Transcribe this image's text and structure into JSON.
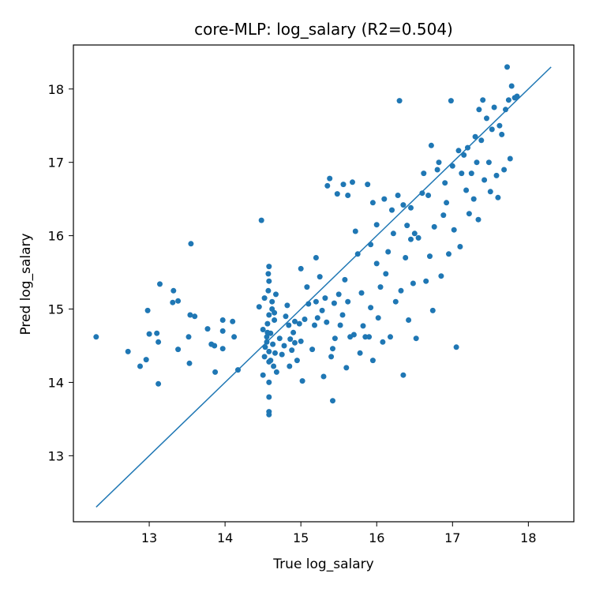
{
  "chart_data": {
    "type": "scatter",
    "title": "core-MLP: log_salary (R2=0.504)",
    "xlabel": "True log_salary",
    "ylabel": "Pred log_salary",
    "xlim": [
      12.0,
      18.6
    ],
    "ylim": [
      12.1,
      18.6
    ],
    "xticks": [
      13,
      14,
      15,
      16,
      17,
      18
    ],
    "yticks": [
      13,
      14,
      15,
      16,
      17,
      18
    ],
    "grid": false,
    "marker_color": "#1f77b4",
    "reference_line": {
      "x": [
        12.3,
        18.3
      ],
      "y": [
        12.3,
        18.3
      ],
      "color": "#1f77b4"
    },
    "points": [
      [
        12.3,
        14.62
      ],
      [
        12.72,
        14.42
      ],
      [
        12.88,
        14.22
      ],
      [
        12.96,
        14.31
      ],
      [
        12.98,
        14.98
      ],
      [
        13.0,
        14.66
      ],
      [
        13.1,
        14.67
      ],
      [
        13.12,
        14.55
      ],
      [
        13.12,
        13.98
      ],
      [
        13.14,
        15.34
      ],
      [
        13.32,
        15.25
      ],
      [
        13.31,
        15.09
      ],
      [
        13.38,
        15.11
      ],
      [
        13.38,
        14.45
      ],
      [
        13.52,
        14.62
      ],
      [
        13.53,
        14.26
      ],
      [
        13.54,
        14.92
      ],
      [
        13.55,
        15.89
      ],
      [
        13.6,
        14.9
      ],
      [
        13.77,
        14.73
      ],
      [
        13.82,
        14.52
      ],
      [
        13.86,
        14.5
      ],
      [
        13.87,
        14.14
      ],
      [
        13.97,
        14.85
      ],
      [
        13.97,
        14.7
      ],
      [
        13.97,
        14.46
      ],
      [
        14.1,
        14.83
      ],
      [
        14.12,
        14.62
      ],
      [
        14.17,
        14.17
      ],
      [
        14.45,
        15.03
      ],
      [
        14.48,
        16.21
      ],
      [
        14.5,
        14.72
      ],
      [
        14.52,
        15.15
      ],
      [
        14.5,
        14.1
      ],
      [
        14.52,
        14.35
      ],
      [
        14.53,
        14.48
      ],
      [
        14.55,
        14.55
      ],
      [
        14.55,
        14.62
      ],
      [
        14.56,
        14.68
      ],
      [
        14.56,
        14.8
      ],
      [
        14.57,
        15.25
      ],
      [
        14.57,
        15.48
      ],
      [
        14.58,
        15.58
      ],
      [
        14.58,
        15.38
      ],
      [
        14.58,
        14.92
      ],
      [
        14.58,
        14.42
      ],
      [
        14.58,
        14.28
      ],
      [
        14.58,
        14.0
      ],
      [
        14.58,
        13.8
      ],
      [
        14.58,
        13.6
      ],
      [
        14.58,
        13.56
      ],
      [
        14.6,
        14.67
      ],
      [
        14.6,
        14.3
      ],
      [
        14.62,
        15.0
      ],
      [
        14.62,
        15.1
      ],
      [
        14.63,
        14.52
      ],
      [
        14.64,
        14.22
      ],
      [
        14.65,
        14.85
      ],
      [
        14.65,
        14.95
      ],
      [
        14.66,
        14.4
      ],
      [
        14.67,
        15.2
      ],
      [
        14.68,
        14.14
      ],
      [
        14.72,
        14.6
      ],
      [
        14.75,
        14.38
      ],
      [
        14.78,
        14.5
      ],
      [
        14.8,
        14.9
      ],
      [
        14.82,
        15.05
      ],
      [
        14.84,
        14.78
      ],
      [
        14.85,
        14.22
      ],
      [
        14.86,
        14.59
      ],
      [
        14.88,
        14.44
      ],
      [
        14.9,
        14.68
      ],
      [
        14.92,
        14.54
      ],
      [
        14.92,
        14.83
      ],
      [
        14.95,
        14.3
      ],
      [
        14.98,
        14.8
      ],
      [
        15.0,
        15.55
      ],
      [
        15.0,
        14.56
      ],
      [
        15.02,
        14.02
      ],
      [
        15.05,
        14.86
      ],
      [
        15.08,
        15.3
      ],
      [
        15.1,
        15.07
      ],
      [
        15.15,
        14.45
      ],
      [
        15.18,
        14.78
      ],
      [
        15.2,
        15.1
      ],
      [
        15.2,
        15.7
      ],
      [
        15.22,
        14.88
      ],
      [
        15.25,
        15.44
      ],
      [
        15.28,
        14.98
      ],
      [
        15.3,
        14.08
      ],
      [
        15.32,
        15.15
      ],
      [
        15.34,
        14.82
      ],
      [
        15.35,
        16.68
      ],
      [
        15.38,
        16.78
      ],
      [
        15.4,
        14.35
      ],
      [
        15.42,
        14.46
      ],
      [
        15.42,
        13.75
      ],
      [
        15.44,
        15.08
      ],
      [
        15.45,
        14.6
      ],
      [
        15.48,
        16.57
      ],
      [
        15.5,
        15.2
      ],
      [
        15.52,
        14.78
      ],
      [
        15.55,
        14.92
      ],
      [
        15.56,
        16.7
      ],
      [
        15.58,
        15.4
      ],
      [
        15.6,
        14.2
      ],
      [
        15.62,
        16.55
      ],
      [
        15.62,
        15.1
      ],
      [
        15.65,
        14.62
      ],
      [
        15.68,
        16.73
      ],
      [
        15.7,
        14.65
      ],
      [
        15.72,
        16.06
      ],
      [
        15.75,
        15.75
      ],
      [
        15.78,
        14.4
      ],
      [
        15.8,
        15.22
      ],
      [
        15.82,
        14.77
      ],
      [
        15.85,
        14.62
      ],
      [
        15.88,
        16.7
      ],
      [
        15.9,
        14.62
      ],
      [
        15.92,
        15.88
      ],
      [
        15.92,
        15.02
      ],
      [
        15.95,
        16.45
      ],
      [
        15.95,
        14.3
      ],
      [
        16.0,
        16.15
      ],
      [
        16.0,
        15.62
      ],
      [
        16.02,
        14.88
      ],
      [
        16.05,
        15.3
      ],
      [
        16.08,
        14.55
      ],
      [
        16.1,
        16.5
      ],
      [
        16.12,
        15.48
      ],
      [
        16.15,
        15.78
      ],
      [
        16.18,
        14.62
      ],
      [
        16.2,
        16.35
      ],
      [
        16.22,
        16.03
      ],
      [
        16.25,
        15.1
      ],
      [
        16.28,
        16.55
      ],
      [
        16.3,
        17.84
      ],
      [
        16.32,
        15.25
      ],
      [
        16.35,
        16.42
      ],
      [
        16.35,
        14.1
      ],
      [
        16.38,
        15.7
      ],
      [
        16.4,
        16.14
      ],
      [
        16.42,
        14.85
      ],
      [
        16.45,
        16.38
      ],
      [
        16.45,
        15.95
      ],
      [
        16.48,
        15.35
      ],
      [
        16.5,
        16.03
      ],
      [
        16.52,
        14.6
      ],
      [
        16.55,
        15.97
      ],
      [
        16.6,
        16.58
      ],
      [
        16.62,
        16.85
      ],
      [
        16.65,
        15.38
      ],
      [
        16.68,
        16.55
      ],
      [
        16.7,
        15.72
      ],
      [
        16.72,
        17.23
      ],
      [
        16.74,
        14.98
      ],
      [
        16.76,
        16.12
      ],
      [
        16.8,
        16.9
      ],
      [
        16.82,
        17.0
      ],
      [
        16.85,
        15.45
      ],
      [
        16.88,
        16.28
      ],
      [
        16.9,
        16.72
      ],
      [
        16.92,
        16.45
      ],
      [
        16.95,
        15.75
      ],
      [
        16.98,
        17.84
      ],
      [
        17.0,
        16.95
      ],
      [
        17.02,
        16.08
      ],
      [
        17.05,
        14.48
      ],
      [
        17.08,
        17.16
      ],
      [
        17.1,
        15.85
      ],
      [
        17.12,
        16.85
      ],
      [
        17.15,
        17.1
      ],
      [
        17.18,
        16.62
      ],
      [
        17.2,
        17.2
      ],
      [
        17.22,
        16.3
      ],
      [
        17.25,
        16.85
      ],
      [
        17.28,
        16.5
      ],
      [
        17.3,
        17.35
      ],
      [
        17.32,
        17.0
      ],
      [
        17.34,
        16.22
      ],
      [
        17.35,
        17.72
      ],
      [
        17.38,
        17.3
      ],
      [
        17.4,
        17.85
      ],
      [
        17.42,
        16.76
      ],
      [
        17.45,
        17.6
      ],
      [
        17.48,
        17.0
      ],
      [
        17.5,
        16.6
      ],
      [
        17.52,
        17.45
      ],
      [
        17.55,
        17.75
      ],
      [
        17.58,
        16.82
      ],
      [
        17.6,
        16.52
      ],
      [
        17.62,
        17.5
      ],
      [
        17.65,
        17.38
      ],
      [
        17.68,
        16.9
      ],
      [
        17.7,
        17.72
      ],
      [
        17.72,
        18.3
      ],
      [
        17.74,
        17.85
      ],
      [
        17.76,
        17.05
      ],
      [
        17.78,
        18.04
      ],
      [
        17.82,
        17.88
      ],
      [
        17.85,
        17.9
      ]
    ]
  }
}
